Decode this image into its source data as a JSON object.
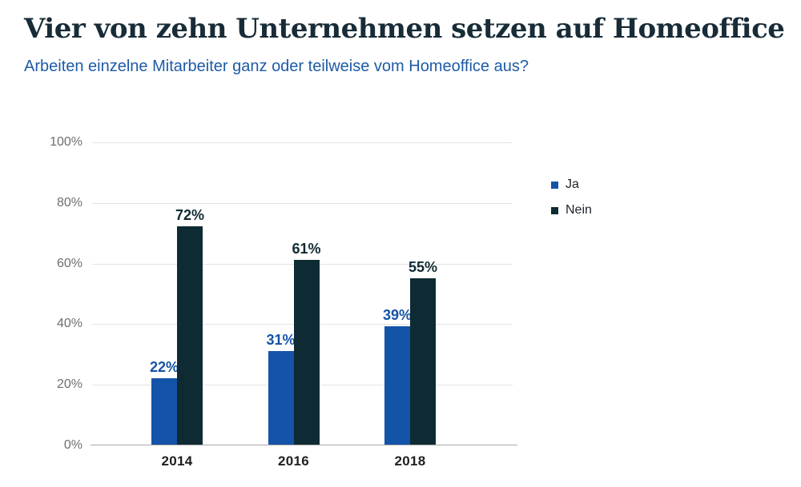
{
  "header": {
    "title": "Vier von zehn Unternehmen setzen auf Homeoffice",
    "subtitle": "Arbeiten einzelne Mitarbeiter ganz oder teilweise vom Homeoffice aus?"
  },
  "chart_data": {
    "type": "bar",
    "categories": [
      "2014",
      "2016",
      "2018"
    ],
    "series": [
      {
        "name": "Ja",
        "color": "#1353a8",
        "values": [
          22,
          31,
          39
        ]
      },
      {
        "name": "Nein",
        "color": "#0e2a32",
        "values": [
          72,
          61,
          55
        ]
      }
    ],
    "value_suffix": "%",
    "ylim": [
      0,
      100
    ],
    "yticks": [
      0,
      20,
      40,
      60,
      80,
      100
    ],
    "ytick_suffix": "%",
    "grid": true,
    "legend_position": "right",
    "legend_labels": [
      "Ja",
      "Nein"
    ]
  },
  "colors": {
    "title": "#182c38",
    "subtitle": "#1e5ba7",
    "bar_ja": "#1353a8",
    "bar_nein": "#0e2a32",
    "gridline": "#e4e4e4",
    "axis_line": "#a8a8a8",
    "ytick_text": "#6e6e6e",
    "xtick_text": "#1f1f1f",
    "legend_text": "#1d242b",
    "background": "#ffffff"
  }
}
